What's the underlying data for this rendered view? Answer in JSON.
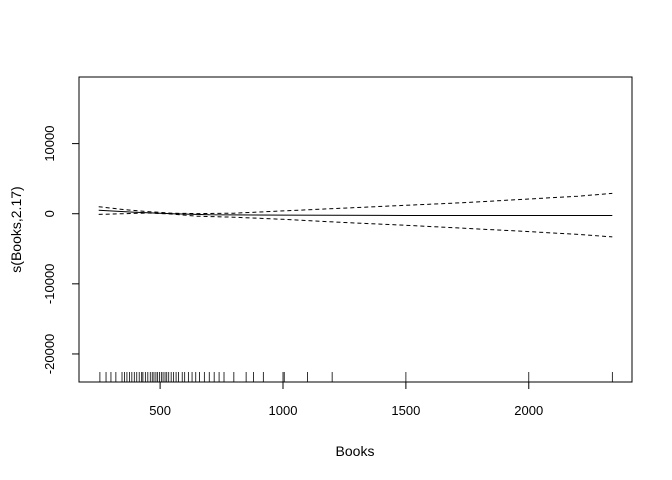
{
  "chart_data": {
    "type": "line",
    "title": "",
    "xlabel": "Books",
    "ylabel": "s(Books,2.17)",
    "xlim": [
      170,
      2420
    ],
    "ylim": [
      -24000,
      19500
    ],
    "x_ticks": [
      500,
      1000,
      1500,
      2000
    ],
    "y_ticks": [
      -20000,
      -10000,
      0,
      10000
    ],
    "grid": false,
    "legend": "none",
    "series": [
      {
        "line_style": "solid",
        "points": [
          [
            250,
            500
          ],
          [
            400,
            200
          ],
          [
            550,
            0
          ],
          [
            700,
            -150
          ],
          [
            1000,
            -200
          ],
          [
            1500,
            -250
          ],
          [
            2000,
            -250
          ],
          [
            2340,
            -250
          ]
        ]
      },
      {
        "line_style": "dashed",
        "points": [
          [
            250,
            1000
          ],
          [
            350,
            600
          ],
          [
            450,
            300
          ],
          [
            550,
            80
          ],
          [
            650,
            20
          ],
          [
            800,
            80
          ],
          [
            1000,
            400
          ],
          [
            1250,
            800
          ],
          [
            1500,
            1200
          ],
          [
            1750,
            1600
          ],
          [
            2000,
            2100
          ],
          [
            2200,
            2500
          ],
          [
            2340,
            2900
          ]
        ]
      },
      {
        "line_style": "dashed",
        "points": [
          [
            250,
            -100
          ],
          [
            350,
            0
          ],
          [
            450,
            100
          ],
          [
            550,
            -50
          ],
          [
            650,
            -350
          ],
          [
            800,
            -500
          ],
          [
            1000,
            -800
          ],
          [
            1250,
            -1250
          ],
          [
            1500,
            -1650
          ],
          [
            1750,
            -2100
          ],
          [
            2000,
            -2550
          ],
          [
            2200,
            -2950
          ],
          [
            2340,
            -3300
          ]
        ]
      }
    ],
    "rug": [
      255,
      280,
      300,
      320,
      345,
      355,
      365,
      375,
      385,
      395,
      405,
      415,
      425,
      430,
      440,
      450,
      460,
      468,
      475,
      483,
      490,
      498,
      505,
      512,
      520,
      527,
      535,
      545,
      555,
      565,
      575,
      590,
      600,
      615,
      630,
      645,
      660,
      680,
      700,
      720,
      740,
      760,
      800,
      850,
      880,
      920,
      1000,
      1005,
      1100,
      1200,
      1500,
      2000,
      2340
    ]
  }
}
